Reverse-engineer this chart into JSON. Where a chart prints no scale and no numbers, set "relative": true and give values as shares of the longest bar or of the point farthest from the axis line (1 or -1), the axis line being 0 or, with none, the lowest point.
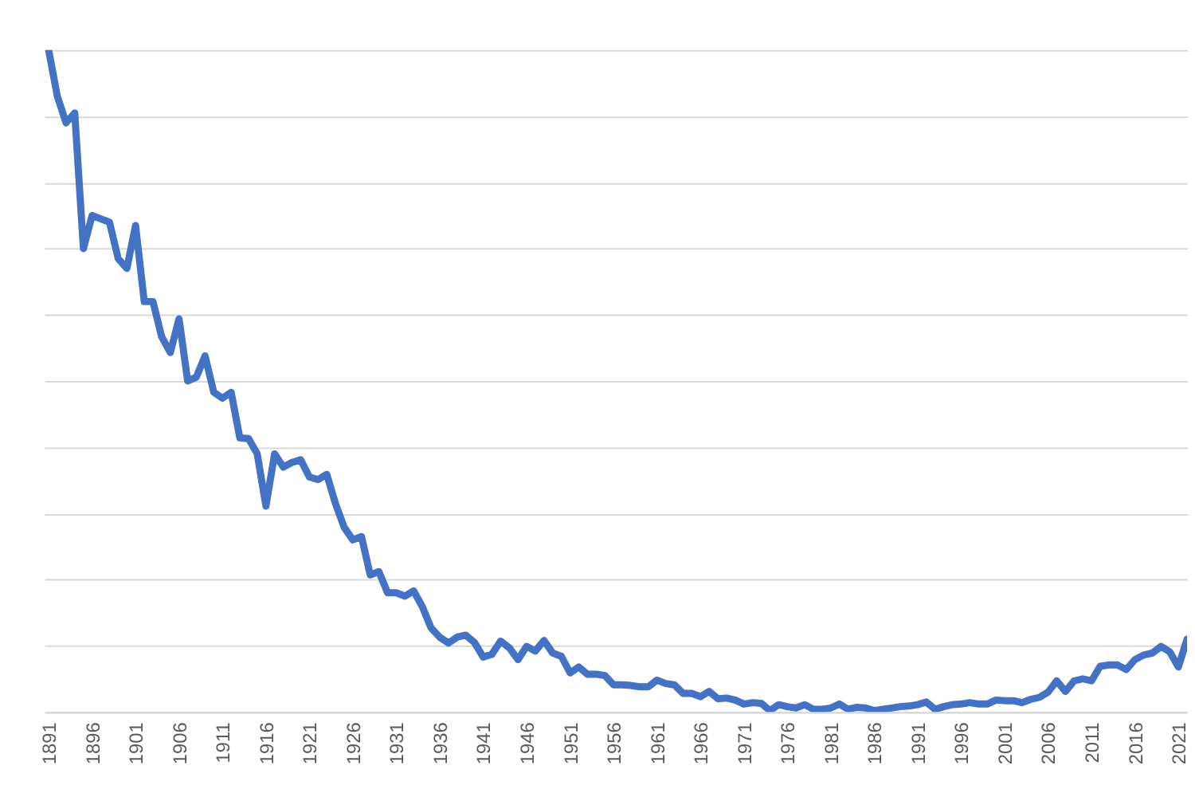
{
  "chart_data": {
    "type": "line",
    "relative": true,
    "grid": "y",
    "x": [
      1891,
      1892,
      1893,
      1894,
      1895,
      1896,
      1897,
      1898,
      1899,
      1900,
      1901,
      1902,
      1903,
      1904,
      1905,
      1906,
      1907,
      1908,
      1909,
      1910,
      1911,
      1912,
      1913,
      1914,
      1915,
      1916,
      1917,
      1918,
      1919,
      1920,
      1921,
      1922,
      1923,
      1924,
      1925,
      1926,
      1927,
      1928,
      1929,
      1930,
      1931,
      1932,
      1933,
      1934,
      1935,
      1936,
      1937,
      1938,
      1939,
      1940,
      1941,
      1942,
      1943,
      1944,
      1945,
      1946,
      1947,
      1948,
      1949,
      1950,
      1951,
      1952,
      1953,
      1954,
      1955,
      1956,
      1957,
      1958,
      1959,
      1960,
      1961,
      1962,
      1963,
      1964,
      1965,
      1966,
      1967,
      1968,
      1969,
      1970,
      1971,
      1972,
      1973,
      1974,
      1975,
      1976,
      1977,
      1978,
      1979,
      1980,
      1981,
      1982,
      1983,
      1984,
      1985,
      1986,
      1987,
      1988,
      1989,
      1990,
      1991,
      1992,
      1993,
      1994,
      1995,
      1996,
      1997,
      1998,
      1999,
      2000,
      2001,
      2002,
      2003,
      2004,
      2005,
      2006,
      2007,
      2008,
      2009,
      2010,
      2011,
      2012,
      2013,
      2014,
      2015,
      2016,
      2017,
      2018,
      2019,
      2020,
      2021,
      2022
    ],
    "xlim": [
      1890.5,
      2022
    ],
    "xticks": [
      1891,
      1896,
      1901,
      1906,
      1911,
      1916,
      1921,
      1926,
      1931,
      1936,
      1941,
      1946,
      1951,
      1956,
      1961,
      1966,
      1971,
      1976,
      1981,
      1986,
      1991,
      1996,
      2001,
      2006,
      2011,
      2016,
      2021
    ],
    "series": [
      {
        "color": "#4472c4",
        "values": [
          1.0,
          0.93,
          0.89,
          0.905,
          0.7,
          0.75,
          0.745,
          0.74,
          0.685,
          0.67,
          0.735,
          0.62,
          0.62,
          0.567,
          0.543,
          0.594,
          0.5,
          0.506,
          0.538,
          0.483,
          0.474,
          0.483,
          0.414,
          0.413,
          0.39,
          0.311,
          0.39,
          0.37,
          0.377,
          0.381,
          0.355,
          0.351,
          0.359,
          0.315,
          0.279,
          0.26,
          0.265,
          0.207,
          0.212,
          0.18,
          0.18,
          0.175,
          0.183,
          0.159,
          0.127,
          0.113,
          0.104,
          0.113,
          0.116,
          0.105,
          0.083,
          0.087,
          0.107,
          0.097,
          0.079,
          0.099,
          0.092,
          0.108,
          0.089,
          0.084,
          0.059,
          0.068,
          0.057,
          0.057,
          0.055,
          0.041,
          0.041,
          0.04,
          0.038,
          0.038,
          0.048,
          0.043,
          0.041,
          0.028,
          0.028,
          0.023,
          0.031,
          0.02,
          0.021,
          0.018,
          0.012,
          0.014,
          0.013,
          0.002,
          0.011,
          0.008,
          0.006,
          0.011,
          0.004,
          0.004,
          0.006,
          0.012,
          0.004,
          0.007,
          0.006,
          0.002,
          0.004,
          0.006,
          0.008,
          0.009,
          0.011,
          0.015,
          0.004,
          0.008,
          0.011,
          0.012,
          0.014,
          0.012,
          0.012,
          0.018,
          0.017,
          0.017,
          0.014,
          0.019,
          0.022,
          0.03,
          0.047,
          0.031,
          0.047,
          0.05,
          0.047,
          0.069,
          0.071,
          0.071,
          0.064,
          0.079,
          0.086,
          0.089,
          0.099,
          0.091,
          0.068,
          0.11
        ]
      }
    ]
  }
}
